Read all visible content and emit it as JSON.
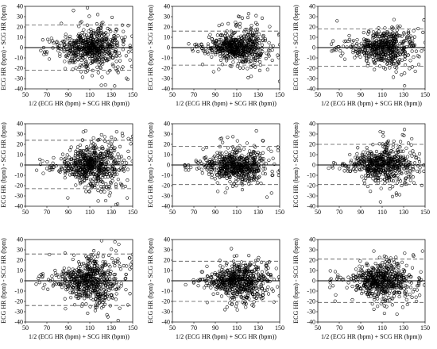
{
  "figure": {
    "layout": "3x3 grid of Bland-Altman plots",
    "background_color": "#ffffff",
    "marker_color": "#000000",
    "mean_line_color": "#000000",
    "limit_line_color": "#555555",
    "limit_line_style": "dashed"
  },
  "chart_data": [
    {
      "type": "scatter",
      "title": "",
      "xlabel": "1/2 (ECG HR (bpm) + SCG HR (bpm))",
      "ylabel": "ECG HR (bpm) - SCG HR (bpm)",
      "xlim": [
        50,
        150
      ],
      "ylim": [
        -40,
        40
      ],
      "x_ticks": [
        "50",
        "70",
        "90",
        "110",
        "130",
        "150"
      ],
      "y_ticks": [
        "-40",
        "-30",
        "-20",
        "-10",
        "0",
        "10",
        "20",
        "30",
        "40"
      ],
      "grid": false,
      "mean_diff": 0,
      "loa_upper": 22,
      "loa_lower": -22,
      "point_count": 620,
      "x_range": [
        62,
        150
      ],
      "x_center": 112,
      "spread_sd": 10,
      "seed": 11
    },
    {
      "type": "scatter",
      "title": "",
      "xlabel": "1/2 (ECG HR (bpm) + SCG HR (bpm))",
      "ylabel": "ECG HR (bpm) - SCG HR (bpm)",
      "xlim": [
        50,
        150
      ],
      "ylim": [
        -40,
        40
      ],
      "x_ticks": [
        "50",
        "70",
        "90",
        "110",
        "130",
        "150"
      ],
      "y_ticks": [
        "-40",
        "-30",
        "-20",
        "-10",
        "0",
        "10",
        "20",
        "30",
        "40"
      ],
      "grid": false,
      "mean_diff": 0,
      "loa_upper": 16,
      "loa_lower": -17,
      "point_count": 620,
      "x_range": [
        62,
        150
      ],
      "x_center": 110,
      "spread_sd": 7,
      "seed": 23
    },
    {
      "type": "scatter",
      "title": "",
      "xlabel": "1/2 (ECG HR (bpm) + SCG HR (bpm))",
      "ylabel": "ECG HR (bpm) - SCG HR (bpm)",
      "xlim": [
        50,
        150
      ],
      "ylim": [
        -40,
        40
      ],
      "x_ticks": [
        "50",
        "70",
        "90",
        "110",
        "130",
        "150"
      ],
      "y_ticks": [
        "-40",
        "-30",
        "-20",
        "-10",
        "0",
        "10",
        "20",
        "30",
        "40"
      ],
      "grid": false,
      "mean_diff": 0,
      "loa_upper": 18,
      "loa_lower": -18,
      "point_count": 560,
      "x_range": [
        60,
        150
      ],
      "x_center": 112,
      "spread_sd": 8,
      "seed": 37
    },
    {
      "type": "scatter",
      "title": "",
      "xlabel": "",
      "ylabel": "ECG HR (bpm) - SCG HR (bpm)",
      "xlim": [
        50,
        150
      ],
      "ylim": [
        -40,
        40
      ],
      "x_ticks": [
        "50",
        "70",
        "90",
        "110",
        "130",
        "150"
      ],
      "y_ticks": [
        "-40",
        "-30",
        "-20",
        "-10",
        "0",
        "10",
        "20",
        "30",
        "40"
      ],
      "grid": false,
      "mean_diff": 0,
      "loa_upper": 24,
      "loa_lower": -23,
      "point_count": 640,
      "x_range": [
        60,
        150
      ],
      "x_center": 112,
      "spread_sd": 10,
      "seed": 41
    },
    {
      "type": "scatter",
      "title": "",
      "xlabel": "",
      "ylabel": "ECG HR (bpm) - SCG HR (bpm)",
      "xlim": [
        50,
        150
      ],
      "ylim": [
        -40,
        40
      ],
      "x_ticks": [
        "50",
        "70",
        "90",
        "110",
        "130",
        "150"
      ],
      "y_ticks": [
        "-40",
        "-30",
        "-20",
        "-10",
        "0",
        "10",
        "20",
        "30",
        "40"
      ],
      "grid": false,
      "mean_diff": 0,
      "loa_upper": 18,
      "loa_lower": -19,
      "point_count": 600,
      "x_range": [
        60,
        150
      ],
      "x_center": 110,
      "spread_sd": 8,
      "seed": 53
    },
    {
      "type": "scatter",
      "title": "",
      "xlabel": "",
      "ylabel": "ECG HR (bpm) - SCG HR (bpm)",
      "xlim": [
        50,
        150
      ],
      "ylim": [
        -40,
        40
      ],
      "x_ticks": [
        "50",
        "70",
        "90",
        "110",
        "130",
        "150"
      ],
      "y_ticks": [
        "-40",
        "-30",
        "-20",
        "-10",
        "0",
        "10",
        "20",
        "30",
        "40"
      ],
      "grid": false,
      "mean_diff": 0,
      "loa_upper": 20,
      "loa_lower": -19,
      "point_count": 600,
      "x_range": [
        60,
        150
      ],
      "x_center": 110,
      "spread_sd": 8,
      "seed": 67
    },
    {
      "type": "scatter",
      "title": "",
      "xlabel": "1/2 (ECG HR (bpm) + SCG HR (bpm))",
      "ylabel": "ECG HR (bpm) - SCG HR (bpm)",
      "xlim": [
        50,
        150
      ],
      "ylim": [
        -40,
        40
      ],
      "x_ticks": [
        "50",
        "70",
        "90",
        "110",
        "130",
        "150"
      ],
      "y_ticks": [
        "-40",
        "-30",
        "-20",
        "-10",
        "0",
        "10",
        "20",
        "30",
        "40"
      ],
      "grid": false,
      "mean_diff": 0,
      "loa_upper": 26,
      "loa_lower": -24,
      "point_count": 620,
      "x_range": [
        60,
        150
      ],
      "x_center": 110,
      "spread_sd": 11,
      "seed": 79
    },
    {
      "type": "scatter",
      "title": "",
      "xlabel": "1/2 (ECG HR (bpm) + SCG HR (bpm))",
      "ylabel": "ECG HR (bpm) - SCG HR (bpm)",
      "xlim": [
        50,
        150
      ],
      "ylim": [
        -40,
        40
      ],
      "x_ticks": [
        "50",
        "70",
        "90",
        "110",
        "130",
        "150"
      ],
      "y_ticks": [
        "-40",
        "-30",
        "-20",
        "-10",
        "0",
        "10",
        "20",
        "30",
        "40"
      ],
      "grid": false,
      "mean_diff": 0,
      "loa_upper": 19,
      "loa_lower": -20,
      "point_count": 620,
      "x_range": [
        62,
        150
      ],
      "x_center": 112,
      "spread_sd": 8,
      "seed": 83
    },
    {
      "type": "scatter",
      "title": "",
      "xlabel": "1/2 (ECG HR (bpm) + SCG HR (bpm))",
      "ylabel": "ECG HR (bpm) - SCG HR (bpm)",
      "xlim": [
        50,
        150
      ],
      "ylim": [
        -40,
        40
      ],
      "x_ticks": [
        "50",
        "70",
        "90",
        "110",
        "130",
        "150"
      ],
      "y_ticks": [
        "-40",
        "-30",
        "-20",
        "-10",
        "0",
        "10",
        "20",
        "30",
        "40"
      ],
      "grid": false,
      "mean_diff": 0,
      "loa_upper": 21,
      "loa_lower": -21,
      "point_count": 600,
      "x_range": [
        60,
        150
      ],
      "x_center": 110,
      "spread_sd": 9,
      "seed": 97
    }
  ]
}
